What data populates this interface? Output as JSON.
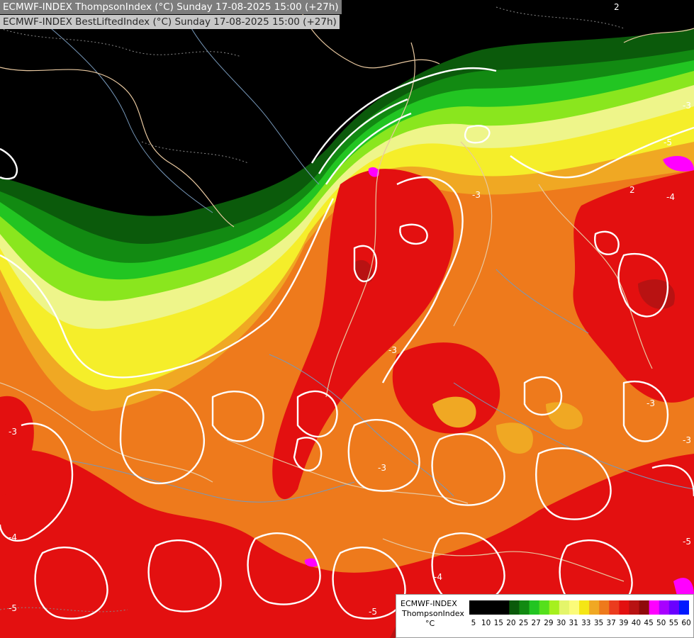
{
  "header": {
    "line1": "ECMWF-INDEX ThompsonIndex (°C) Sunday 17-08-2025 15:00 (+27h)",
    "line2": "ECMWF-INDEX BestLiftedIndex (°C) Sunday 17-08-2025 15:00 (+27h)"
  },
  "legend": {
    "title": "ECMWF-INDEX",
    "subtitle": "ThompsonIndex",
    "unit": "°C",
    "ticks": [
      "5",
      "10",
      "15",
      "20",
      "25",
      "27",
      "29",
      "30",
      "31",
      "33",
      "35",
      "37",
      "39",
      "40",
      "45",
      "50",
      "55",
      "60"
    ],
    "colors": [
      "#000000",
      "#000000",
      "#000000",
      "#000000",
      "#0b5a0b",
      "#128a12",
      "#22c522",
      "#55e01c",
      "#a6f01e",
      "#e4f56a",
      "#fbfb7a",
      "#f5e615",
      "#f0a823",
      "#ee7a1c",
      "#eb3c1e",
      "#e31010",
      "#b81212",
      "#8f0a0a",
      "#ff00ff",
      "#a800ff",
      "#6a00ff",
      "#0018ff"
    ]
  },
  "map_colors": {
    "background": "#000000",
    "dark_green": "#0b5a0b",
    "mid_green": "#128a12",
    "green": "#22c522",
    "lime": "#8ae61e",
    "pale_yellow": "#eef58a",
    "yellow": "#f5ee2a",
    "light_orange": "#f0a823",
    "orange": "#ee7a1c",
    "red": "#e31010",
    "dark_red": "#b81212",
    "magenta": "#ff00ff",
    "borders": "#e8c8a0",
    "rivers": "#7799bb",
    "contours": "#ffffff"
  },
  "contour_labels": [
    "-3",
    "-3",
    "-3",
    "-3",
    "-4",
    "-5",
    "-5",
    "-4",
    "-3",
    "-3",
    "-3",
    "2",
    "2",
    "-4",
    "-5",
    "-5"
  ]
}
